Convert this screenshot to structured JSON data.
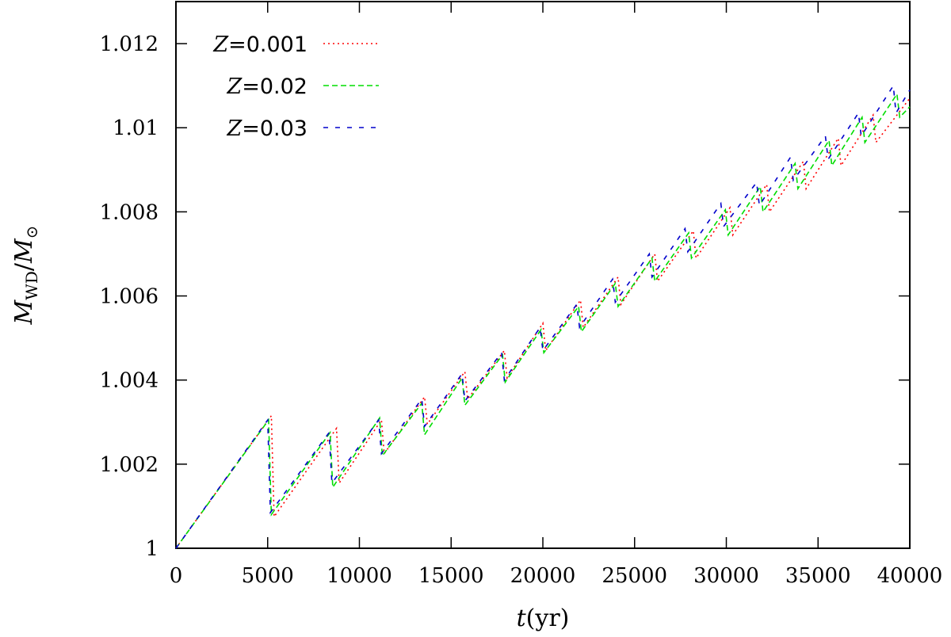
{
  "chart_data": {
    "type": "line",
    "xlabel": {
      "var": "t",
      "unit": "(yr)"
    },
    "ylabel": {
      "var": "M",
      "sub": "WD",
      "sep": "/",
      "var2": "M",
      "sub2": "⊙"
    },
    "xlim": [
      0,
      40000
    ],
    "ylim": [
      1.0,
      1.013
    ],
    "xticks": [
      0,
      5000,
      10000,
      15000,
      20000,
      25000,
      30000,
      35000,
      40000
    ],
    "yticks": [
      1.0,
      1.002,
      1.004,
      1.006,
      1.008,
      1.01,
      1.012
    ],
    "ytick_labels": [
      "1",
      "1.002",
      "1.004",
      "1.006",
      "1.008",
      "1.01",
      "1.012"
    ],
    "xtick_labels": [
      "0",
      "5000",
      "10000",
      "15000",
      "20000",
      "25000",
      "30000",
      "35000",
      "40000"
    ],
    "grid": false,
    "legend_position": "top-left",
    "series": [
      {
        "name_var": "Z",
        "name_val": "=0.001",
        "color": "#ff0000",
        "dash": "dotted",
        "x": [
          0,
          5200,
          5200,
          5350,
          8750,
          8750,
          8900,
          11200,
          11200,
          11350,
          13550,
          13550,
          13700,
          15750,
          15750,
          15900,
          17900,
          17900,
          18050,
          20000,
          20000,
          20150,
          22050,
          22050,
          22200,
          24100,
          24100,
          24250,
          26100,
          26100,
          26250,
          28200,
          28200,
          28350,
          30200,
          30200,
          30350,
          32200,
          32200,
          32350,
          34200,
          34200,
          34350,
          36100,
          36100,
          36250,
          38000,
          38000,
          38150,
          40000
        ],
        "y": [
          1.0,
          1.00315,
          1.00315,
          1.00075,
          1.00285,
          1.00285,
          1.00155,
          1.00305,
          1.00305,
          1.00225,
          1.0036,
          1.0036,
          1.00295,
          1.0042,
          1.0042,
          1.00355,
          1.0047,
          1.0047,
          1.00405,
          1.00535,
          1.00535,
          1.0047,
          1.0059,
          1.0059,
          1.00525,
          1.00645,
          1.00645,
          1.0058,
          1.007,
          1.007,
          1.00635,
          1.00755,
          1.00755,
          1.0069,
          1.0081,
          1.0081,
          1.00745,
          1.00865,
          1.00865,
          1.008,
          1.0092,
          1.0092,
          1.00855,
          1.00975,
          1.00975,
          1.0091,
          1.0103,
          1.0103,
          1.00965,
          1.0107
        ]
      },
      {
        "name_var": "Z",
        "name_val": "=0.02",
        "color": "#00dd00",
        "dash": "dashed",
        "x": [
          0,
          5050,
          5050,
          5200,
          8400,
          8400,
          8550,
          11100,
          11100,
          11250,
          13400,
          13400,
          13550,
          15600,
          15600,
          15750,
          17800,
          17800,
          17950,
          19900,
          19900,
          20050,
          21950,
          21950,
          22100,
          23950,
          23950,
          24100,
          25950,
          25950,
          26100,
          27950,
          27950,
          28100,
          29950,
          29950,
          30100,
          31850,
          31850,
          32000,
          33750,
          33750,
          33900,
          35600,
          35600,
          35750,
          37400,
          37400,
          37550,
          39300,
          39300,
          39450,
          40000
        ],
        "y": [
          1.0,
          1.00305,
          1.00305,
          1.0008,
          1.00275,
          1.00275,
          1.00145,
          1.0031,
          1.0031,
          1.0022,
          1.00345,
          1.00345,
          1.0027,
          1.00405,
          1.00405,
          1.0034,
          1.0046,
          1.0046,
          1.00395,
          1.0052,
          1.0052,
          1.00465,
          1.00575,
          1.00575,
          1.00515,
          1.0063,
          1.0063,
          1.00575,
          1.0069,
          1.0069,
          1.00635,
          1.0075,
          1.0075,
          1.0069,
          1.00805,
          1.00805,
          1.00745,
          1.0086,
          1.0086,
          1.008,
          1.00915,
          1.00915,
          1.00855,
          1.0097,
          1.0097,
          1.0091,
          1.01025,
          1.01025,
          1.00965,
          1.0108,
          1.0108,
          1.01025,
          1.0105
        ]
      },
      {
        "name_var": "Z",
        "name_val": "=0.03",
        "color": "#0000cc",
        "dash": "sparse-dash",
        "x": [
          0,
          5000,
          5000,
          5150,
          8350,
          8350,
          8500,
          11050,
          11050,
          11200,
          13400,
          13400,
          13550,
          15600,
          15600,
          15750,
          17750,
          17750,
          17900,
          19850,
          19850,
          20000,
          21850,
          21850,
          22000,
          23800,
          23800,
          23950,
          25800,
          25800,
          25950,
          27750,
          27750,
          27900,
          29700,
          29700,
          29850,
          31650,
          31650,
          31800,
          33500,
          33500,
          33650,
          35400,
          35400,
          35550,
          37200,
          37200,
          37350,
          39100,
          39100,
          39250,
          40000
        ],
        "y": [
          1.0,
          1.00305,
          1.00305,
          1.00085,
          1.00275,
          1.00275,
          1.00155,
          1.00305,
          1.00305,
          1.00225,
          1.00355,
          1.00355,
          1.0029,
          1.00415,
          1.00415,
          1.0035,
          1.00465,
          1.00465,
          1.004,
          1.00525,
          1.00525,
          1.0047,
          1.0058,
          1.0058,
          1.00525,
          1.0064,
          1.0064,
          1.00585,
          1.007,
          1.007,
          1.00645,
          1.0076,
          1.0076,
          1.00705,
          1.0082,
          1.0082,
          1.00765,
          1.0087,
          1.0087,
          1.00815,
          1.0093,
          1.0093,
          1.00875,
          1.0098,
          1.0098,
          1.00925,
          1.01035,
          1.01035,
          1.0098,
          1.011,
          1.011,
          1.01035,
          1.0109
        ]
      }
    ]
  }
}
